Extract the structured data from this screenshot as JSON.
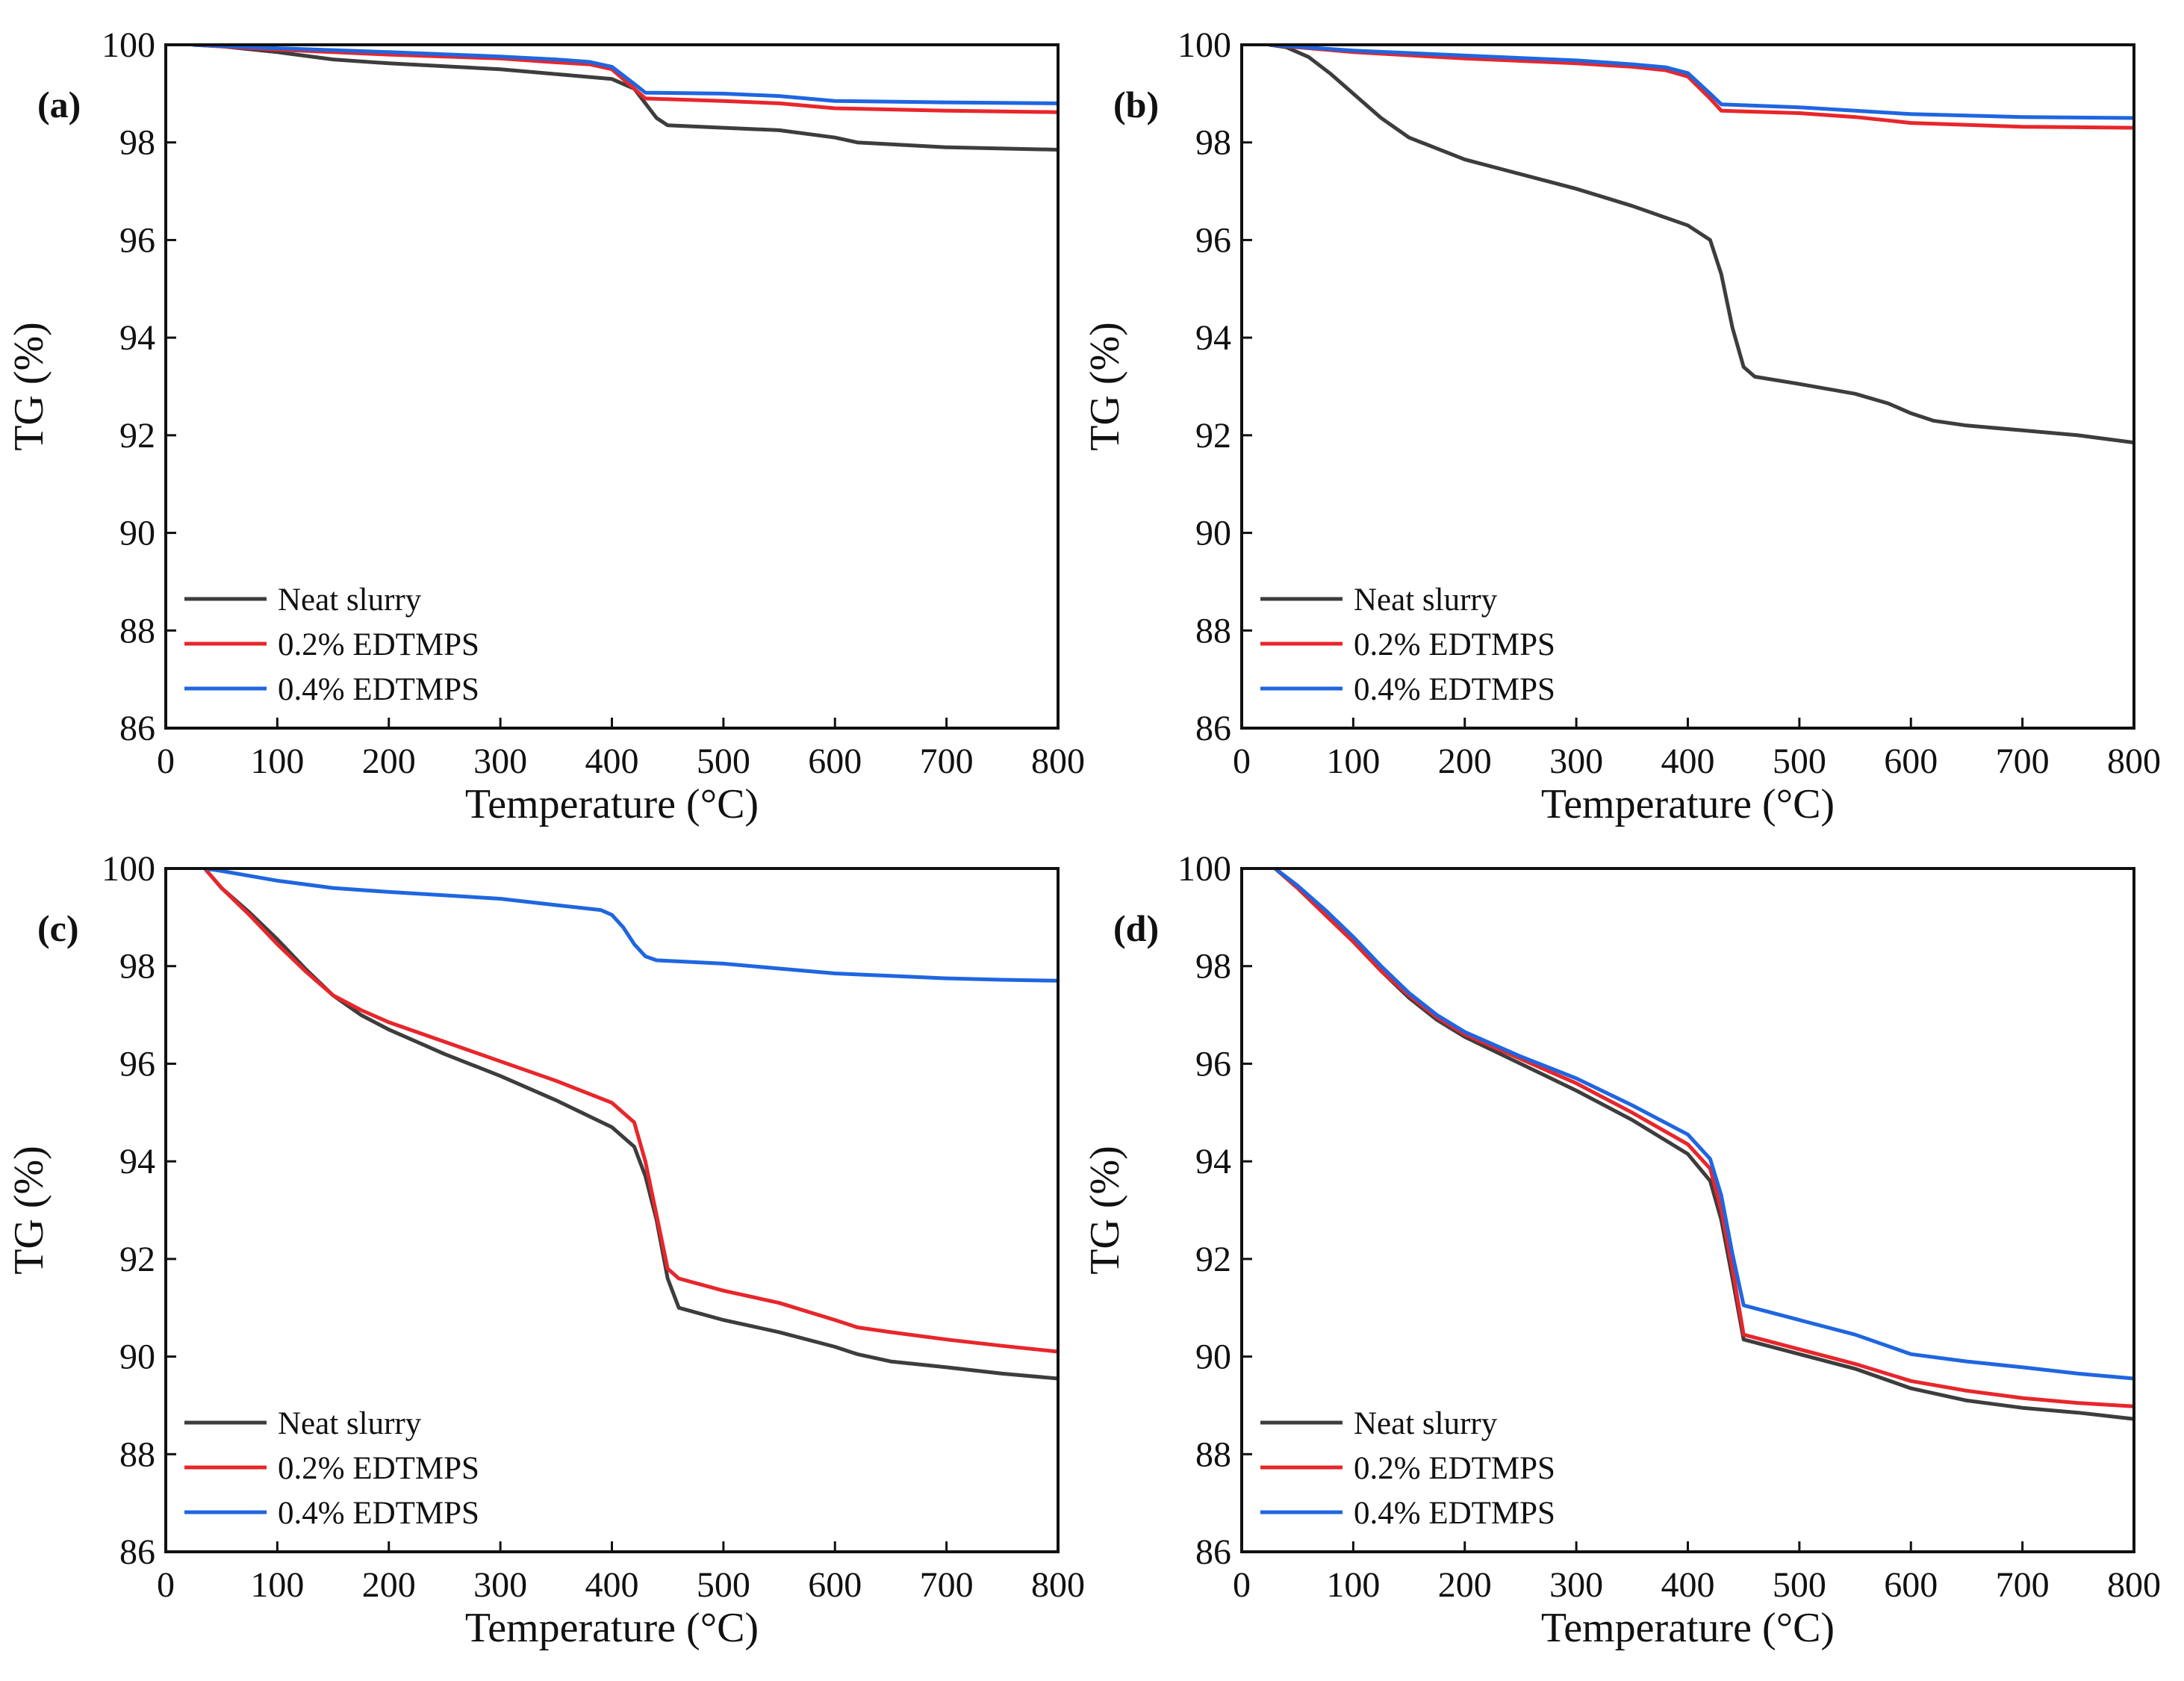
{
  "figure": {
    "colors": {
      "Neat slurry": "#3d3d3d",
      "0.2% EDTMPS": "#e8262b",
      "0.4% EDTMPS": "#1f66e0"
    }
  },
  "chart_data": [
    {
      "panel_label": "(a)",
      "type": "line",
      "xlabel": "Temperature (°C)",
      "ylabel": "TG (%)",
      "xlim": [
        0,
        800
      ],
      "ylim": [
        86,
        100
      ],
      "xticks": [
        0,
        100,
        200,
        300,
        400,
        500,
        600,
        700,
        800
      ],
      "yticks": [
        86,
        88,
        90,
        92,
        94,
        96,
        98,
        100
      ],
      "legend_position": "bottom-left",
      "grid": false,
      "series": [
        {
          "name": "Neat slurry",
          "x": [
            25,
            50,
            100,
            150,
            200,
            300,
            350,
            400,
            420,
            440,
            450,
            500,
            550,
            600,
            620,
            700,
            800
          ],
          "y": [
            100,
            99.97,
            99.85,
            99.7,
            99.62,
            99.5,
            99.4,
            99.3,
            99.1,
            98.5,
            98.35,
            98.3,
            98.25,
            98.1,
            98.0,
            97.9,
            97.85
          ]
        },
        {
          "name": "0.2% EDTMPS",
          "x": [
            25,
            100,
            200,
            300,
            350,
            380,
            400,
            420,
            430,
            500,
            550,
            600,
            700,
            800
          ],
          "y": [
            100,
            99.9,
            99.8,
            99.72,
            99.64,
            99.6,
            99.5,
            99.1,
            98.9,
            98.85,
            98.8,
            98.7,
            98.65,
            98.62
          ]
        },
        {
          "name": "0.4% EDTMPS",
          "x": [
            25,
            100,
            200,
            300,
            350,
            380,
            400,
            420,
            430,
            500,
            550,
            600,
            700,
            800
          ],
          "y": [
            100,
            99.93,
            99.85,
            99.76,
            99.7,
            99.65,
            99.55,
            99.2,
            99.02,
            99.0,
            98.95,
            98.85,
            98.82,
            98.8
          ]
        }
      ]
    },
    {
      "panel_label": "(b)",
      "type": "line",
      "xlabel": "Temperature (°C)",
      "ylabel": "TG (%)",
      "xlim": [
        0,
        800
      ],
      "ylim": [
        86,
        100
      ],
      "xticks": [
        0,
        100,
        200,
        300,
        400,
        500,
        600,
        700,
        800
      ],
      "yticks": [
        86,
        88,
        90,
        92,
        94,
        96,
        98,
        100
      ],
      "legend_position": "bottom-left",
      "grid": false,
      "series": [
        {
          "name": "Neat slurry",
          "x": [
            25,
            40,
            60,
            80,
            100,
            125,
            150,
            200,
            250,
            300,
            350,
            400,
            420,
            430,
            440,
            450,
            460,
            500,
            550,
            580,
            600,
            620,
            650,
            700,
            750,
            800
          ],
          "y": [
            100,
            99.95,
            99.75,
            99.4,
            99.0,
            98.5,
            98.1,
            97.65,
            97.35,
            97.05,
            96.7,
            96.3,
            96.0,
            95.3,
            94.2,
            93.4,
            93.2,
            93.05,
            92.85,
            92.65,
            92.45,
            92.3,
            92.2,
            92.1,
            92.0,
            91.85
          ]
        },
        {
          "name": "0.2% EDTMPS",
          "x": [
            25,
            100,
            200,
            300,
            350,
            380,
            400,
            420,
            430,
            500,
            550,
            600,
            700,
            800
          ],
          "y": [
            100,
            99.85,
            99.72,
            99.62,
            99.55,
            99.48,
            99.35,
            98.9,
            98.65,
            98.6,
            98.52,
            98.4,
            98.32,
            98.3
          ]
        },
        {
          "name": "0.4% EDTMPS",
          "x": [
            25,
            100,
            200,
            300,
            350,
            380,
            400,
            420,
            430,
            500,
            550,
            600,
            700,
            800
          ],
          "y": [
            100,
            99.88,
            99.78,
            99.68,
            99.6,
            99.54,
            99.42,
            99.0,
            98.78,
            98.72,
            98.65,
            98.58,
            98.52,
            98.5
          ]
        }
      ]
    },
    {
      "panel_label": "(c)",
      "type": "line",
      "xlabel": "Temperature (°C)",
      "ylabel": "TG (%)",
      "xlim": [
        0,
        800
      ],
      "ylim": [
        86,
        100
      ],
      "xticks": [
        0,
        100,
        200,
        300,
        400,
        500,
        600,
        700,
        800
      ],
      "yticks": [
        86,
        88,
        90,
        92,
        94,
        96,
        98,
        100
      ],
      "legend_position": "bottom-left",
      "grid": false,
      "series": [
        {
          "name": "Neat slurry",
          "x": [
            35,
            50,
            75,
            100,
            125,
            150,
            175,
            200,
            250,
            300,
            350,
            400,
            420,
            430,
            440,
            450,
            460,
            500,
            550,
            600,
            620,
            650,
            700,
            750,
            800
          ],
          "y": [
            100,
            99.6,
            99.1,
            98.55,
            97.95,
            97.4,
            97.0,
            96.7,
            96.2,
            95.75,
            95.25,
            94.7,
            94.3,
            93.7,
            92.8,
            91.6,
            91.0,
            90.75,
            90.5,
            90.2,
            90.05,
            89.9,
            89.78,
            89.65,
            89.55
          ]
        },
        {
          "name": "0.2% EDTMPS",
          "x": [
            35,
            50,
            75,
            100,
            125,
            150,
            175,
            200,
            250,
            300,
            350,
            400,
            420,
            430,
            440,
            450,
            460,
            500,
            550,
            600,
            620,
            650,
            700,
            750,
            800
          ],
          "y": [
            100,
            99.6,
            99.05,
            98.45,
            97.9,
            97.4,
            97.1,
            96.85,
            96.45,
            96.05,
            95.65,
            95.2,
            94.8,
            94.0,
            92.9,
            91.8,
            91.6,
            91.35,
            91.1,
            90.75,
            90.6,
            90.5,
            90.35,
            90.22,
            90.1
          ]
        },
        {
          "name": "0.4% EDTMPS",
          "x": [
            35,
            50,
            100,
            150,
            200,
            250,
            300,
            350,
            390,
            400,
            410,
            420,
            430,
            440,
            500,
            550,
            600,
            650,
            700,
            750,
            800
          ],
          "y": [
            100,
            99.95,
            99.75,
            99.6,
            99.52,
            99.45,
            99.38,
            99.25,
            99.15,
            99.05,
            98.8,
            98.45,
            98.2,
            98.12,
            98.05,
            97.95,
            97.85,
            97.8,
            97.75,
            97.72,
            97.7
          ]
        }
      ]
    },
    {
      "panel_label": "(d)",
      "type": "line",
      "xlabel": "Temperature (°C)",
      "ylabel": "TG (%)",
      "xlim": [
        0,
        800
      ],
      "ylim": [
        86,
        100
      ],
      "xticks": [
        0,
        100,
        200,
        300,
        400,
        500,
        600,
        700,
        800
      ],
      "yticks": [
        86,
        88,
        90,
        92,
        94,
        96,
        98,
        100
      ],
      "legend_position": "bottom-left",
      "grid": false,
      "series": [
        {
          "name": "Neat slurry",
          "x": [
            30,
            50,
            75,
            100,
            125,
            150,
            175,
            200,
            250,
            300,
            350,
            400,
            420,
            430,
            440,
            450,
            500,
            550,
            600,
            650,
            700,
            750,
            800
          ],
          "y": [
            100,
            99.6,
            99.05,
            98.5,
            97.9,
            97.35,
            96.9,
            96.55,
            96.0,
            95.45,
            94.85,
            94.15,
            93.6,
            92.8,
            91.6,
            90.35,
            90.05,
            89.75,
            89.35,
            89.1,
            88.95,
            88.85,
            88.72
          ]
        },
        {
          "name": "0.2% EDTMPS",
          "x": [
            30,
            50,
            75,
            100,
            125,
            150,
            175,
            200,
            250,
            300,
            350,
            400,
            420,
            430,
            440,
            450,
            500,
            550,
            600,
            650,
            700,
            750,
            800
          ],
          "y": [
            100,
            99.6,
            99.05,
            98.5,
            97.9,
            97.4,
            96.95,
            96.6,
            96.1,
            95.6,
            95.0,
            94.35,
            93.85,
            93.0,
            91.8,
            90.45,
            90.15,
            89.85,
            89.5,
            89.3,
            89.15,
            89.05,
            88.98
          ]
        },
        {
          "name": "0.4% EDTMPS",
          "x": [
            30,
            50,
            75,
            100,
            125,
            150,
            175,
            200,
            250,
            300,
            350,
            400,
            420,
            430,
            440,
            450,
            500,
            550,
            600,
            650,
            700,
            750,
            800
          ],
          "y": [
            100,
            99.65,
            99.15,
            98.6,
            98.0,
            97.45,
            97.0,
            96.65,
            96.15,
            95.7,
            95.15,
            94.55,
            94.05,
            93.3,
            92.1,
            91.05,
            90.75,
            90.45,
            90.05,
            89.9,
            89.78,
            89.65,
            89.55
          ]
        }
      ]
    }
  ]
}
